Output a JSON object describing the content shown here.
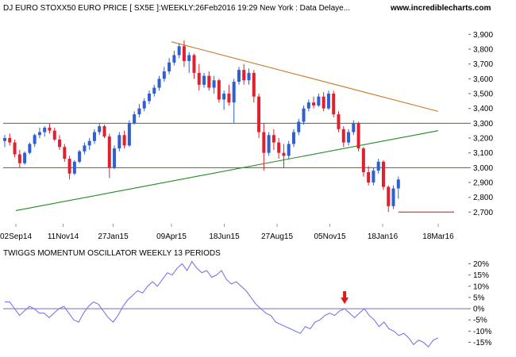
{
  "header": {
    "title": "DJ EURO STOXX50 EURO PRICE [ SX5E ]:WEEKLY:26Feb2016 19:29 New York : Data Delaye...",
    "site": "www.incrediblecharts.com"
  },
  "colors": {
    "up": "#2f5fd0",
    "down": "#e0202c",
    "trend_resistance": "#c87a2a",
    "trend_support": "#208a20",
    "level_lines": "#3a7a1e",
    "oscillator": "#7878e8",
    "zero_line": "#6f6fbf",
    "arrow": "#e01818"
  },
  "chart_data": [
    {
      "type": "candlestick",
      "title": "DJ EURO STOXX50 EURO PRICE [ SX5E ]:WEEKLY:26Feb2016 19:29 New York : Data Delaye...",
      "x_tick_labels": [
        "02Sep14",
        "11Nov14",
        "27Jan15",
        "09Apr15",
        "18Jun15",
        "27Aug15",
        "05Nov15",
        "18Jan16",
        "18Mar16"
      ],
      "y_tick_labels": [
        "3,900",
        "3,800",
        "3,700",
        "3,600",
        "3,500",
        "3,400",
        "3,300",
        "3,200",
        "3,100",
        "3,000",
        "2,900",
        "2,800",
        "2,700"
      ],
      "ylim": [
        2600,
        3950
      ],
      "weeks": 88,
      "ohlc": [
        [
          3180,
          3220,
          3140,
          3200
        ],
        [
          3200,
          3230,
          3150,
          3170
        ],
        [
          3170,
          3190,
          3070,
          3090
        ],
        [
          3090,
          3120,
          3000,
          3030
        ],
        [
          3030,
          3110,
          3020,
          3100
        ],
        [
          3100,
          3170,
          3090,
          3160
        ],
        [
          3160,
          3230,
          3140,
          3220
        ],
        [
          3220,
          3270,
          3200,
          3240
        ],
        [
          3240,
          3280,
          3210,
          3270
        ],
        [
          3270,
          3300,
          3230,
          3250
        ],
        [
          3250,
          3270,
          3180,
          3190
        ],
        [
          3190,
          3220,
          3120,
          3140
        ],
        [
          3140,
          3160,
          3040,
          3060
        ],
        [
          3060,
          3080,
          2920,
          2960
        ],
        [
          2960,
          3050,
          2950,
          3040
        ],
        [
          3040,
          3120,
          3030,
          3110
        ],
        [
          3110,
          3170,
          3090,
          3150
        ],
        [
          3150,
          3200,
          3120,
          3180
        ],
        [
          3180,
          3260,
          3160,
          3240
        ],
        [
          3240,
          3300,
          3220,
          3280
        ],
        [
          3280,
          3290,
          3200,
          3210
        ],
        [
          3210,
          3230,
          2930,
          3000
        ],
        [
          3000,
          3150,
          2990,
          3130
        ],
        [
          3130,
          3240,
          3110,
          3220
        ],
        [
          3220,
          3250,
          3130,
          3150
        ],
        [
          3150,
          3320,
          3140,
          3300
        ],
        [
          3300,
          3380,
          3290,
          3360
        ],
        [
          3360,
          3430,
          3340,
          3400
        ],
        [
          3400,
          3470,
          3380,
          3450
        ],
        [
          3450,
          3520,
          3430,
          3500
        ],
        [
          3500,
          3560,
          3480,
          3540
        ],
        [
          3540,
          3620,
          3520,
          3600
        ],
        [
          3600,
          3680,
          3580,
          3650
        ],
        [
          3650,
          3740,
          3630,
          3710
        ],
        [
          3710,
          3790,
          3690,
          3760
        ],
        [
          3760,
          3840,
          3740,
          3820
        ],
        [
          3820,
          3860,
          3680,
          3720
        ],
        [
          3720,
          3780,
          3640,
          3760
        ],
        [
          3760,
          3770,
          3600,
          3640
        ],
        [
          3640,
          3700,
          3520,
          3560
        ],
        [
          3560,
          3640,
          3540,
          3620
        ],
        [
          3620,
          3650,
          3520,
          3540
        ],
        [
          3540,
          3620,
          3500,
          3590
        ],
        [
          3590,
          3600,
          3440,
          3460
        ],
        [
          3460,
          3520,
          3390,
          3500
        ],
        [
          3500,
          3560,
          3420,
          3440
        ],
        [
          3440,
          3600,
          3300,
          3580
        ],
        [
          3580,
          3680,
          3560,
          3660
        ],
        [
          3660,
          3700,
          3560,
          3590
        ],
        [
          3590,
          3670,
          3560,
          3640
        ],
        [
          3640,
          3660,
          3440,
          3480
        ],
        [
          3480,
          3500,
          3200,
          3240
        ],
        [
          3240,
          3300,
          2980,
          3100
        ],
        [
          3100,
          3240,
          3080,
          3220
        ],
        [
          3220,
          3260,
          3120,
          3170
        ],
        [
          3170,
          3200,
          3060,
          3100
        ],
        [
          3100,
          3160,
          3000,
          3080
        ],
        [
          3080,
          3180,
          3060,
          3160
        ],
        [
          3160,
          3260,
          3140,
          3240
        ],
        [
          3240,
          3330,
          3220,
          3310
        ],
        [
          3310,
          3420,
          3290,
          3400
        ],
        [
          3400,
          3460,
          3380,
          3440
        ],
        [
          3440,
          3480,
          3400,
          3420
        ],
        [
          3420,
          3500,
          3410,
          3480
        ],
        [
          3480,
          3510,
          3380,
          3400
        ],
        [
          3400,
          3520,
          3390,
          3500
        ],
        [
          3500,
          3520,
          3340,
          3360
        ],
        [
          3360,
          3380,
          3240,
          3260
        ],
        [
          3260,
          3280,
          3140,
          3170
        ],
        [
          3170,
          3260,
          3150,
          3240
        ],
        [
          3240,
          3320,
          3220,
          3300
        ],
        [
          3300,
          3310,
          3110,
          3130
        ],
        [
          3130,
          3140,
          2940,
          2970
        ],
        [
          2970,
          3010,
          2880,
          2900
        ],
        [
          2900,
          3000,
          2880,
          2980
        ],
        [
          2980,
          3060,
          2960,
          3040
        ],
        [
          3040,
          3050,
          2850,
          2870
        ],
        [
          2870,
          2880,
          2700,
          2740
        ],
        [
          2740,
          2880,
          2720,
          2860
        ],
        [
          2860,
          2940,
          2790,
          2920
        ]
      ],
      "trendlines": [
        {
          "name": "resistance",
          "from": [
            "09Apr15",
            3850
          ],
          "to": [
            "18Mar16",
            3380
          ]
        },
        {
          "name": "support",
          "from": [
            "02Sep14",
            2710
          ],
          "to": [
            "18Mar16",
            3250
          ]
        }
      ],
      "horizontal_levels": [
        3300,
        3000
      ],
      "support_marker": {
        "value": 2700
      }
    },
    {
      "type": "line",
      "title": "TWIGGS MOMENTUM OSCILLATOR WEEKLY 13 PERIODS",
      "y_tick_labels": [
        "20%",
        "15%",
        "10%",
        "5%",
        "0%",
        "-5%",
        "-10%",
        "-15%"
      ],
      "ylim": [
        -18,
        23
      ],
      "zero_line": 0,
      "values": [
        3,
        3,
        0,
        -3,
        -1,
        1,
        0,
        -2,
        -2,
        -4,
        -2,
        0,
        1,
        -2,
        -5,
        -6,
        -2,
        1,
        3,
        2,
        -1,
        -4,
        -6,
        -3,
        1,
        4,
        6,
        8,
        7,
        10,
        12,
        10,
        13,
        16,
        15,
        18,
        20,
        17,
        21,
        18,
        16,
        17,
        14,
        15,
        17,
        13,
        11,
        12,
        10,
        8,
        5,
        2,
        0,
        -2,
        -3,
        -6,
        -7,
        -8,
        -9,
        -10,
        -11,
        -8,
        -9,
        -6,
        -5,
        -3,
        -2,
        -3,
        -1,
        0,
        -2,
        -4,
        -2,
        0,
        -3,
        -5,
        -8,
        -6,
        -9,
        -10,
        -12,
        -11,
        -13,
        -16,
        -14,
        -15,
        -17,
        -14,
        -13
      ],
      "marker_index": 69
    }
  ]
}
